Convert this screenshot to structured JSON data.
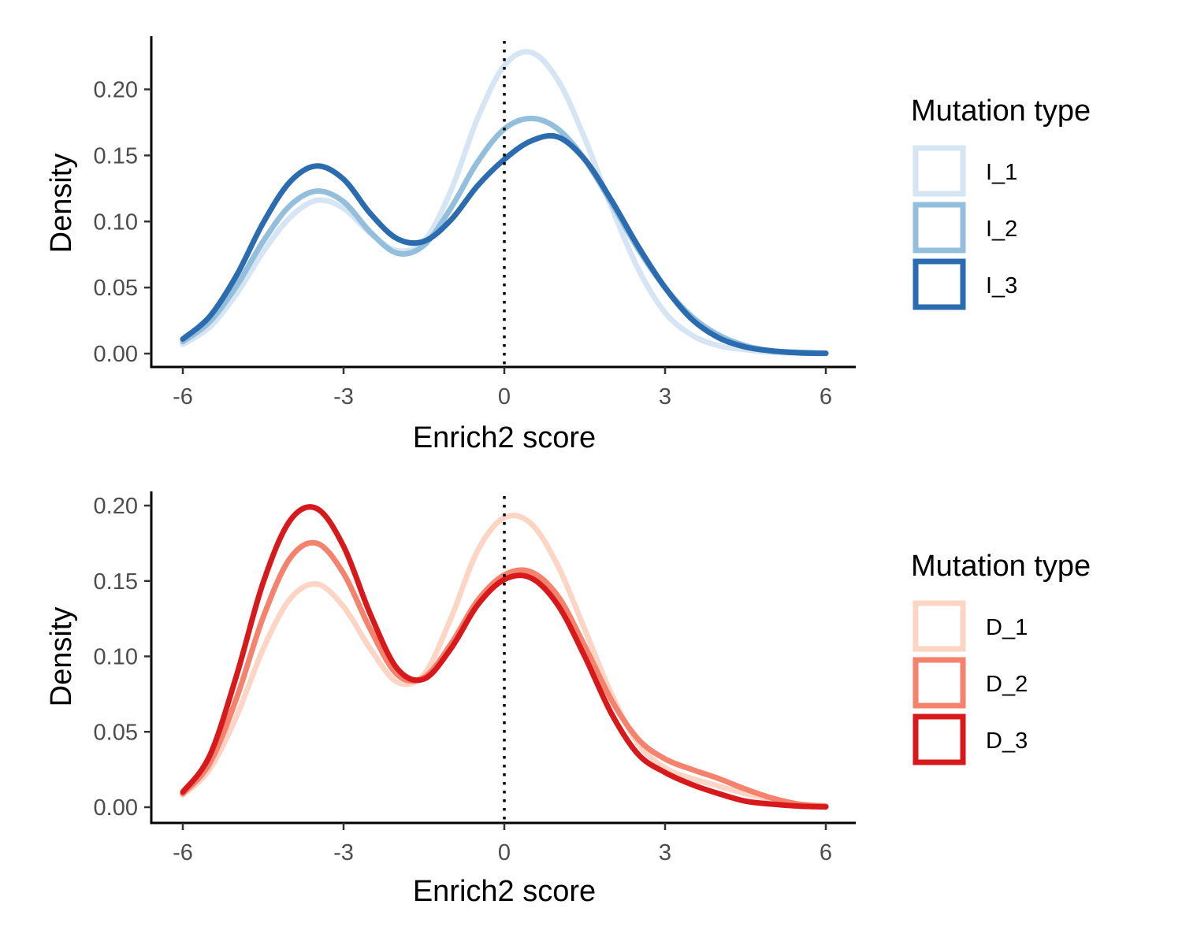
{
  "chart_data": [
    {
      "type": "line",
      "subtype": "density",
      "xlabel": "Enrich2 score",
      "ylabel": "Density",
      "xlim": [
        -6,
        6
      ],
      "ylim": [
        0,
        0.23
      ],
      "xticks": [
        -6,
        -3,
        0,
        3,
        6
      ],
      "xtick_labels": [
        "-6",
        "-3",
        "0",
        "3",
        "6"
      ],
      "yticks": [
        0,
        0.05,
        0.1,
        0.15,
        0.2
      ],
      "ytick_labels": [
        "0.00",
        "0.05",
        "0.10",
        "0.15",
        "0.20"
      ],
      "reference_line": {
        "x": 0,
        "style": "dotted"
      },
      "grid": false,
      "legend": {
        "title": "Mutation type",
        "position": "right"
      },
      "x": [
        -6,
        -5.5,
        -5,
        -4.5,
        -4,
        -3.5,
        -3,
        -2.5,
        -2,
        -1.5,
        -1,
        -0.5,
        0,
        0.5,
        1,
        1.5,
        2,
        2.5,
        3,
        3.5,
        4,
        4.5,
        5,
        5.5,
        6
      ],
      "series": [
        {
          "name": "I_1",
          "color": "#d6e5f3",
          "values": [
            0.007,
            0.02,
            0.045,
            0.077,
            0.103,
            0.116,
            0.11,
            0.091,
            0.078,
            0.085,
            0.123,
            0.178,
            0.218,
            0.228,
            0.207,
            0.163,
            0.111,
            0.064,
            0.031,
            0.014,
            0.006,
            0.003,
            0.001,
            0.0004,
            0.0002
          ]
        },
        {
          "name": "I_2",
          "color": "#93bfdc",
          "values": [
            0.009,
            0.024,
            0.051,
            0.085,
            0.112,
            0.123,
            0.115,
            0.092,
            0.076,
            0.082,
            0.11,
            0.145,
            0.17,
            0.178,
            0.17,
            0.147,
            0.114,
            0.079,
            0.05,
            0.028,
            0.014,
            0.006,
            0.002,
            0.001,
            0.0003
          ]
        },
        {
          "name": "I_3",
          "color": "#2b6cb0",
          "values": [
            0.011,
            0.028,
            0.059,
            0.099,
            0.13,
            0.142,
            0.132,
            0.106,
            0.087,
            0.085,
            0.101,
            0.127,
            0.147,
            0.161,
            0.164,
            0.147,
            0.116,
            0.081,
            0.05,
            0.026,
            0.012,
            0.005,
            0.002,
            0.0006,
            0.0002
          ]
        }
      ]
    },
    {
      "type": "line",
      "subtype": "density",
      "xlabel": "Enrich2 score",
      "ylabel": "Density",
      "xlim": [
        -6,
        6
      ],
      "ylim": [
        0,
        0.2
      ],
      "xticks": [
        -6,
        -3,
        0,
        3,
        6
      ],
      "xtick_labels": [
        "-6",
        "-3",
        "0",
        "3",
        "6"
      ],
      "yticks": [
        0,
        0.05,
        0.1,
        0.15,
        0.2
      ],
      "ytick_labels": [
        "0.00",
        "0.05",
        "0.10",
        "0.15",
        "0.20"
      ],
      "reference_line": {
        "x": 0,
        "style": "dotted"
      },
      "grid": false,
      "legend": {
        "title": "Mutation type",
        "position": "right"
      },
      "x": [
        -6,
        -5.5,
        -5,
        -4.5,
        -4,
        -3.5,
        -3,
        -2.5,
        -2,
        -1.5,
        -1,
        -0.5,
        0,
        0.5,
        1,
        1.5,
        2,
        2.5,
        3,
        3.5,
        4,
        4.5,
        5,
        5.5,
        6
      ],
      "series": [
        {
          "name": "D_1",
          "color": "#fcd5c5",
          "values": [
            0.008,
            0.025,
            0.06,
            0.105,
            0.138,
            0.148,
            0.133,
            0.105,
            0.083,
            0.088,
            0.125,
            0.17,
            0.192,
            0.188,
            0.16,
            0.118,
            0.075,
            0.042,
            0.026,
            0.019,
            0.014,
            0.009,
            0.005,
            0.002,
            0.0006
          ]
        },
        {
          "name": "D_2",
          "color": "#f4826d",
          "values": [
            0.009,
            0.029,
            0.072,
            0.126,
            0.165,
            0.175,
            0.155,
            0.118,
            0.088,
            0.086,
            0.108,
            0.137,
            0.154,
            0.156,
            0.14,
            0.107,
            0.071,
            0.045,
            0.032,
            0.025,
            0.019,
            0.012,
            0.006,
            0.002,
            0.0007
          ]
        },
        {
          "name": "D_3",
          "color": "#d7191c",
          "values": [
            0.01,
            0.034,
            0.087,
            0.149,
            0.19,
            0.198,
            0.173,
            0.128,
            0.092,
            0.085,
            0.105,
            0.134,
            0.151,
            0.152,
            0.134,
            0.1,
            0.062,
            0.035,
            0.023,
            0.015,
            0.009,
            0.004,
            0.002,
            0.0007,
            0.0002
          ]
        }
      ]
    }
  ]
}
